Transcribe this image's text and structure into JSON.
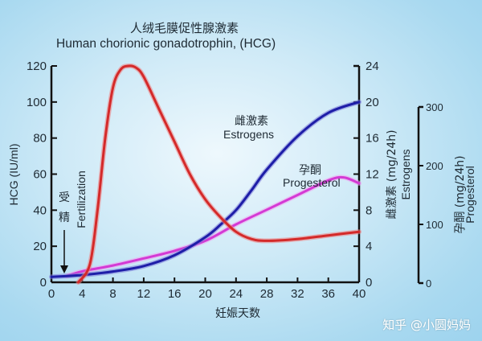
{
  "title_cn": "人绒毛膜促性腺激素",
  "title_en": "Human chorionic gonadotrophin, (HCG)",
  "watermark": "知乎 @小圆妈妈",
  "annotations": {
    "fertilization_cn_1": "受",
    "fertilization_cn_2": "精",
    "fertilization_en": "Fertilization",
    "estrogens_cn": "雌激素",
    "estrogens_en": "Estrogens",
    "progesterol_cn": "孕酮",
    "progesterol_en": "Progesterol"
  },
  "axes": {
    "x_label": "妊娠天数",
    "y_left_label": "HCG (IU/ml)",
    "y_right1_label_cn": "雌激素 (mg/24h)",
    "y_right1_label_en": "Estrogens",
    "y_right2_label_cn": "孕酮 (mg/24h)",
    "y_right2_label_en": "Progesterol"
  },
  "colors": {
    "hcg": "#d42a2a",
    "estrogens": "#1e1ea8",
    "progesterol": "#d43ad4"
  },
  "chart_data": {
    "type": "line",
    "title": "人绒毛膜促性腺激素 Human chorionic gonadotrophin, (HCG)",
    "xlabel": "妊娠天数",
    "x_ticks": [
      0,
      4,
      8,
      12,
      16,
      20,
      24,
      28,
      32,
      36,
      40
    ],
    "xlim": [
      0,
      40
    ],
    "axes": [
      {
        "name": "HCG (IU/ml)",
        "position": "left",
        "ylim": [
          0,
          120
        ],
        "ticks": [
          0,
          20,
          40,
          60,
          80,
          100,
          120
        ]
      },
      {
        "name": "雌激素 (mg/24h) Estrogens",
        "position": "right",
        "ylim": [
          0,
          24
        ],
        "ticks": [
          0,
          4,
          8,
          12,
          16,
          20,
          24
        ]
      },
      {
        "name": "孕酮 (mg/24h) Progesterol",
        "position": "right-outer",
        "ylim": [
          0,
          300
        ],
        "ticks": [
          0,
          100,
          200,
          300
        ]
      }
    ],
    "series": [
      {
        "name": "HCG",
        "axis": "left",
        "x": [
          3.5,
          5,
          6,
          7,
          8,
          9,
          10,
          11,
          12,
          14,
          16,
          18,
          20,
          22,
          24,
          26,
          28,
          32,
          36,
          40
        ],
        "values": [
          0,
          10,
          40,
          80,
          108,
          118,
          120,
          119,
          114,
          96,
          78,
          60,
          46,
          36,
          28,
          24,
          23,
          24,
          26,
          28
        ]
      },
      {
        "name": "Estrogens",
        "axis": "right",
        "x": [
          0,
          4,
          8,
          12,
          16,
          20,
          22,
          24,
          26,
          28,
          32,
          36,
          40
        ],
        "values": [
          0.6,
          0.8,
          1.2,
          1.8,
          3.0,
          5.0,
          6.4,
          8.0,
          10.2,
          12.5,
          16.2,
          18.8,
          20
        ]
      },
      {
        "name": "Progesterol",
        "axis": "right-outer",
        "x": [
          2,
          4,
          8,
          12,
          16,
          20,
          24,
          28,
          32,
          36,
          38,
          40
        ],
        "values": [
          12,
          20,
          30,
          42,
          55,
          72,
          100,
          125,
          150,
          175,
          180,
          170
        ]
      }
    ],
    "annotations": [
      "受精 Fertilization (arrow at day ~1.5)",
      "雌激素 Estrogens",
      "孕酮 Progesterol"
    ],
    "grid": false,
    "legend": "inline labels"
  }
}
